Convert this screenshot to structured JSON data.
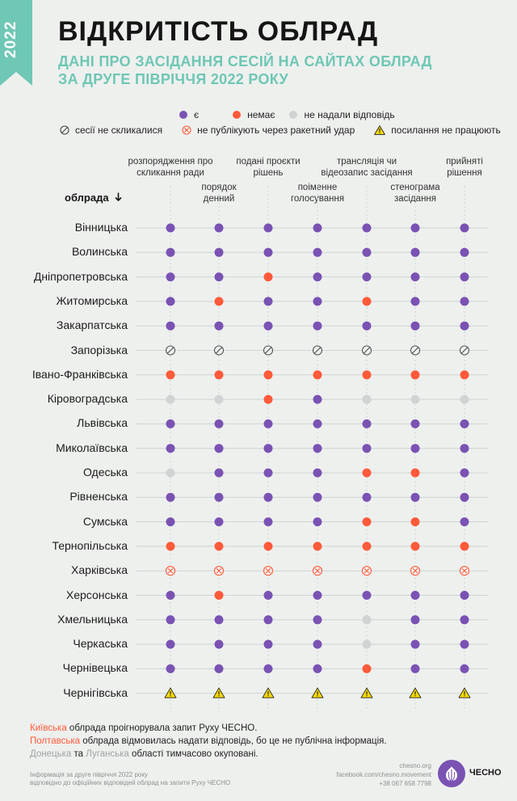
{
  "year": "2022",
  "title": "ВІДКРИТІСТЬ ОБЛРАД",
  "subtitle_line1": "ДАНІ ПРО ЗАСІДАННЯ СЕСІЙ НА САЙТАХ ОБЛРАД",
  "subtitle_line2": "ЗА ДРУГЕ ПІВРІЧЧЯ 2022 РОКУ",
  "colors": {
    "yes": "#7a52b3",
    "no": "#ff5a3a",
    "no_answer": "#cfd3d3",
    "accent": "#6fc7b5",
    "warning": "#f5d800",
    "grid": "#c9d6d4"
  },
  "legend": {
    "yes": "є",
    "no": "немає",
    "no_answer": "не надали відповідь",
    "not_convened": "сесії не скликалися",
    "rocket": "не публікують через ракетний удар",
    "broken_links": "посилання не працюють"
  },
  "sort_label": "облрада",
  "chart_data": {
    "type": "table",
    "title": "ВІДКРИТІСТЬ ОБЛРАД",
    "columns": [
      "розпорядження про скликання ради",
      "порядок денний",
      "подані проєкти рішень",
      "поіменне голосування",
      "трансляція чи відеозапис засідання",
      "стенограма засідання",
      "прийняті рішення"
    ],
    "column_headers": [
      [
        "розпорядження про",
        "скликання ради"
      ],
      [
        "порядок",
        "денний"
      ],
      [
        "подані проєкти",
        "рішень"
      ],
      [
        "поіменне",
        "голосування"
      ],
      [
        "трансляція чи",
        "відеозапис засідання"
      ],
      [
        "стенограма",
        "засідання"
      ],
      [
        "прийняті",
        "рішення"
      ]
    ],
    "status_codes": {
      "y": "є",
      "n": "немає",
      "g": "не надали відповідь",
      "s": "сесії не скликалися",
      "r": "не публікують через ракетний удар",
      "w": "посилання не працюють"
    },
    "rows": [
      {
        "name": "Вінницька",
        "values": [
          "y",
          "y",
          "y",
          "y",
          "y",
          "y",
          "y"
        ]
      },
      {
        "name": "Волинська",
        "values": [
          "y",
          "y",
          "y",
          "y",
          "y",
          "y",
          "y"
        ]
      },
      {
        "name": "Дніпропетровська",
        "values": [
          "y",
          "y",
          "n",
          "y",
          "y",
          "y",
          "y"
        ]
      },
      {
        "name": "Житомирська",
        "values": [
          "y",
          "n",
          "y",
          "y",
          "n",
          "y",
          "y"
        ]
      },
      {
        "name": "Закарпатська",
        "values": [
          "y",
          "y",
          "y",
          "y",
          "y",
          "y",
          "y"
        ]
      },
      {
        "name": "Запорізька",
        "values": [
          "s",
          "s",
          "s",
          "s",
          "s",
          "s",
          "s"
        ]
      },
      {
        "name": "Івано-Франківська",
        "values": [
          "n",
          "n",
          "n",
          "n",
          "n",
          "n",
          "n"
        ]
      },
      {
        "name": "Кіровоградська",
        "values": [
          "g",
          "g",
          "n",
          "y",
          "g",
          "g",
          "g"
        ]
      },
      {
        "name": "Львівська",
        "values": [
          "y",
          "y",
          "y",
          "y",
          "y",
          "y",
          "y"
        ]
      },
      {
        "name": "Миколаївська",
        "values": [
          "y",
          "y",
          "y",
          "y",
          "y",
          "y",
          "y"
        ]
      },
      {
        "name": "Одеська",
        "values": [
          "g",
          "y",
          "y",
          "y",
          "n",
          "n",
          "y"
        ]
      },
      {
        "name": "Рівненська",
        "values": [
          "y",
          "y",
          "y",
          "y",
          "y",
          "y",
          "y"
        ]
      },
      {
        "name": "Сумська",
        "values": [
          "y",
          "y",
          "y",
          "y",
          "n",
          "n",
          "y"
        ]
      },
      {
        "name": "Тернопільська",
        "values": [
          "n",
          "n",
          "n",
          "n",
          "n",
          "n",
          "n"
        ]
      },
      {
        "name": "Харківська",
        "values": [
          "r",
          "r",
          "r",
          "r",
          "r",
          "r",
          "r"
        ]
      },
      {
        "name": "Херсонська",
        "values": [
          "y",
          "n",
          "y",
          "y",
          "y",
          "y",
          "y"
        ]
      },
      {
        "name": "Хмельницька",
        "values": [
          "y",
          "y",
          "y",
          "y",
          "g",
          "y",
          "y"
        ]
      },
      {
        "name": "Черкаська",
        "values": [
          "y",
          "y",
          "y",
          "y",
          "g",
          "y",
          "y"
        ]
      },
      {
        "name": "Чернівецька",
        "values": [
          "y",
          "y",
          "y",
          "y",
          "n",
          "y",
          "y"
        ]
      },
      {
        "name": "Чернігівська",
        "values": [
          "w",
          "w",
          "w",
          "w",
          "w",
          "w",
          "w"
        ]
      }
    ]
  },
  "footer": {
    "line1_highlight": "Київська",
    "line1_rest": " облрада проігнорувала запит Руху ЧЕСНО.",
    "line2_highlight": "Полтавська",
    "line2_rest": " облрада відмовилась надати відповідь, бо це не публічна інформація.",
    "line3_hl1": "Донецька",
    "line3_mid": " та ",
    "line3_hl2": "Луганська",
    "line3_rest": " області тимчасово окуповані."
  },
  "source_note_line1": "Інформація за другe півріччя 2022 року",
  "source_note_line2": "відповідно до офіційних відповідей облрад на запити Руху ЧЕСНО",
  "contacts": {
    "site": "chesno.org",
    "facebook": "facebook.com/chesno.movement",
    "phone": "+38 067 658 7798"
  },
  "logo_text": "ЧЕСНО"
}
